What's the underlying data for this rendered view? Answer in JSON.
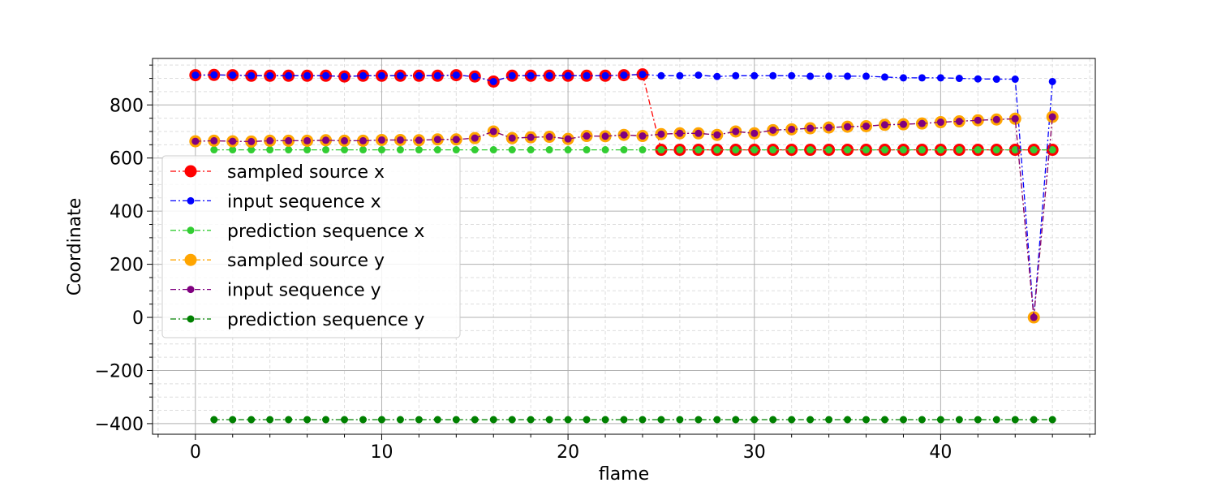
{
  "chart_data": {
    "type": "line",
    "title": "",
    "xlabel": "flame",
    "ylabel": "Coordinate",
    "xlim": [
      -2.3,
      48.3
    ],
    "ylim": [
      -440,
      975
    ],
    "xticks": [
      0,
      10,
      20,
      30,
      40
    ],
    "yticks": [
      -400,
      -200,
      0,
      200,
      400,
      600,
      800
    ],
    "grid": "major and minor",
    "legend_position": "center-left",
    "series": [
      {
        "name": "sampled source x",
        "color": "#ff0000",
        "marker": "large",
        "x": [
          0,
          1,
          2,
          3,
          4,
          5,
          6,
          7,
          8,
          9,
          10,
          11,
          12,
          13,
          14,
          15,
          16,
          17,
          18,
          19,
          20,
          21,
          22,
          23,
          24,
          25,
          26,
          27,
          28,
          29,
          30,
          31,
          32,
          33,
          34,
          35,
          36,
          37,
          38,
          39,
          40,
          41,
          42,
          43,
          44,
          45,
          46
        ],
        "y": [
          912,
          913,
          912,
          910,
          910,
          910,
          910,
          910,
          907,
          910,
          910,
          910,
          910,
          910,
          912,
          907,
          888,
          910,
          910,
          910,
          910,
          910,
          910,
          912,
          915,
          631,
          631,
          631,
          631,
          631,
          631,
          631,
          631,
          631,
          631,
          631,
          631,
          631,
          631,
          631,
          631,
          631,
          631,
          631,
          631,
          631,
          631
        ]
      },
      {
        "name": "input sequence x",
        "color": "#0000ff",
        "marker": "small",
        "x": [
          0,
          1,
          2,
          3,
          4,
          5,
          6,
          7,
          8,
          9,
          10,
          11,
          12,
          13,
          14,
          15,
          16,
          17,
          18,
          19,
          20,
          21,
          22,
          23,
          24,
          25,
          26,
          27,
          28,
          29,
          30,
          31,
          32,
          33,
          34,
          35,
          36,
          37,
          38,
          39,
          40,
          41,
          42,
          43,
          44,
          45,
          46
        ],
        "y": [
          912,
          913,
          912,
          910,
          910,
          910,
          910,
          910,
          907,
          910,
          910,
          910,
          910,
          910,
          912,
          907,
          888,
          910,
          910,
          910,
          910,
          910,
          910,
          912,
          915,
          910,
          910,
          912,
          907,
          910,
          910,
          910,
          910,
          908,
          908,
          908,
          908,
          905,
          902,
          902,
          902,
          900,
          898,
          897,
          897,
          0,
          888
        ]
      },
      {
        "name": "prediction sequence x",
        "color": "#32cd32",
        "marker": "small",
        "x": [
          1,
          2,
          3,
          4,
          5,
          6,
          7,
          8,
          9,
          10,
          11,
          12,
          13,
          14,
          15,
          16,
          17,
          18,
          19,
          20,
          21,
          22,
          23,
          24,
          25,
          26,
          27,
          28,
          29,
          30,
          31,
          32,
          33,
          34,
          35,
          36,
          37,
          38,
          39,
          40,
          41,
          42,
          43,
          44,
          45,
          46
        ],
        "y": [
          631,
          631,
          631,
          631,
          631,
          631,
          631,
          631,
          631,
          631,
          631,
          631,
          631,
          631,
          631,
          631,
          631,
          631,
          631,
          631,
          631,
          631,
          631,
          631,
          631,
          631,
          631,
          631,
          631,
          631,
          631,
          631,
          631,
          631,
          631,
          631,
          631,
          631,
          631,
          631,
          631,
          631,
          631,
          631,
          631,
          631
        ]
      },
      {
        "name": "sampled source y",
        "color": "#ffa500",
        "marker": "large",
        "x": [
          0,
          1,
          2,
          3,
          4,
          5,
          6,
          7,
          8,
          9,
          10,
          11,
          12,
          13,
          14,
          15,
          16,
          17,
          18,
          19,
          20,
          21,
          22,
          23,
          24,
          25,
          26,
          27,
          28,
          29,
          30,
          31,
          32,
          33,
          34,
          35,
          36,
          37,
          38,
          39,
          40,
          41,
          42,
          43,
          44,
          45,
          46
        ],
        "y": [
          663,
          665,
          663,
          662,
          665,
          665,
          665,
          667,
          665,
          665,
          668,
          668,
          667,
          670,
          670,
          675,
          700,
          675,
          678,
          680,
          672,
          683,
          682,
          687,
          683,
          690,
          693,
          693,
          687,
          700,
          693,
          705,
          708,
          712,
          715,
          718,
          720,
          725,
          727,
          730,
          735,
          738,
          742,
          745,
          748,
          0,
          755
        ]
      },
      {
        "name": "input sequence y",
        "color": "#800080",
        "marker": "small",
        "x": [
          0,
          1,
          2,
          3,
          4,
          5,
          6,
          7,
          8,
          9,
          10,
          11,
          12,
          13,
          14,
          15,
          16,
          17,
          18,
          19,
          20,
          21,
          22,
          23,
          24,
          25,
          26,
          27,
          28,
          29,
          30,
          31,
          32,
          33,
          34,
          35,
          36,
          37,
          38,
          39,
          40,
          41,
          42,
          43,
          44,
          45,
          46
        ],
        "y": [
          663,
          665,
          663,
          662,
          665,
          665,
          665,
          667,
          665,
          665,
          668,
          668,
          667,
          670,
          670,
          675,
          700,
          675,
          678,
          680,
          672,
          683,
          682,
          687,
          683,
          690,
          693,
          693,
          687,
          700,
          693,
          705,
          708,
          712,
          715,
          718,
          720,
          725,
          727,
          730,
          735,
          738,
          742,
          745,
          748,
          0,
          755
        ]
      },
      {
        "name": "prediction sequence y",
        "color": "#008000",
        "marker": "small",
        "x": [
          1,
          2,
          3,
          4,
          5,
          6,
          7,
          8,
          9,
          10,
          11,
          12,
          13,
          14,
          15,
          16,
          17,
          18,
          19,
          20,
          21,
          22,
          23,
          24,
          25,
          26,
          27,
          28,
          29,
          30,
          31,
          32,
          33,
          34,
          35,
          36,
          37,
          38,
          39,
          40,
          41,
          42,
          43,
          44,
          45,
          46
        ],
        "y": [
          -385,
          -385,
          -385,
          -385,
          -385,
          -385,
          -385,
          -385,
          -385,
          -385,
          -385,
          -385,
          -385,
          -385,
          -385,
          -385,
          -385,
          -385,
          -385,
          -385,
          -385,
          -385,
          -385,
          -385,
          -385,
          -385,
          -385,
          -385,
          -385,
          -385,
          -385,
          -385,
          -385,
          -385,
          -385,
          -385,
          -385,
          -385,
          -385,
          -385,
          -385,
          -385,
          -385,
          -385,
          -385,
          -385
        ]
      }
    ]
  }
}
